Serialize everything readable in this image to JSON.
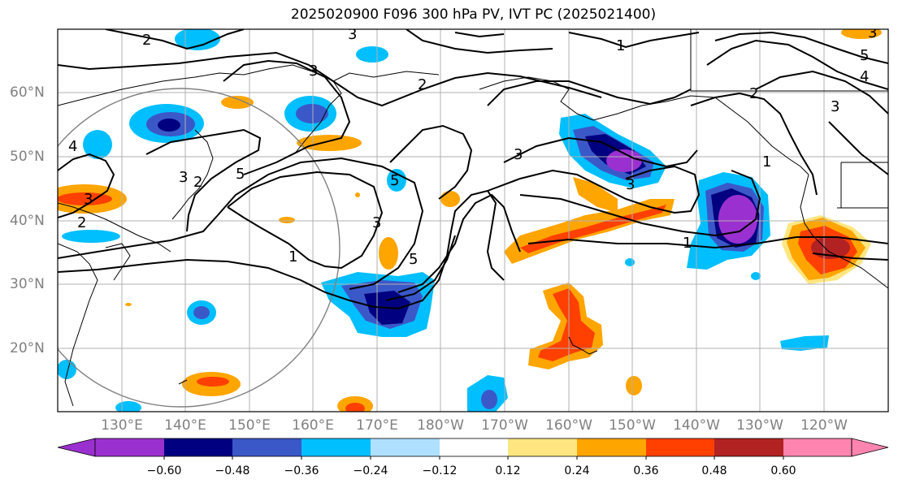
{
  "title": "2025020900 F096 300 hPa PV, IVT PC (2025021400)",
  "lat_labels": [
    "60°N",
    "50°N",
    "40°N",
    "30°N",
    "20°N"
  ],
  "lon_labels": [
    "130°E",
    "140°E",
    "150°E",
    "160°E",
    "170°E",
    "180°W",
    "170°W",
    "160°W",
    "150°W",
    "140°W",
    "130°W",
    "120°W"
  ],
  "colorbar": {
    "ticks": [
      "−0.60",
      "−0.48",
      "−0.36",
      "−0.24",
      "−0.12",
      "0.12",
      "0.24",
      "0.36",
      "0.48",
      "0.60"
    ],
    "colors": [
      "#9b30d0",
      "#000080",
      "#3b58c8",
      "#00bfff",
      "#b0e0ff",
      "#ffffff",
      "#ffe680",
      "#ffa500",
      "#ff4000",
      "#b22222",
      "#ff85b0"
    ]
  },
  "contour_labels": [
    "2",
    "3",
    "2",
    "1",
    "5",
    "2",
    "3",
    "4",
    "3",
    "5",
    "3",
    "5",
    "1",
    "3",
    "3",
    "2",
    "2",
    "3",
    "1",
    "3",
    "4",
    "3",
    "1",
    "5"
  ]
}
